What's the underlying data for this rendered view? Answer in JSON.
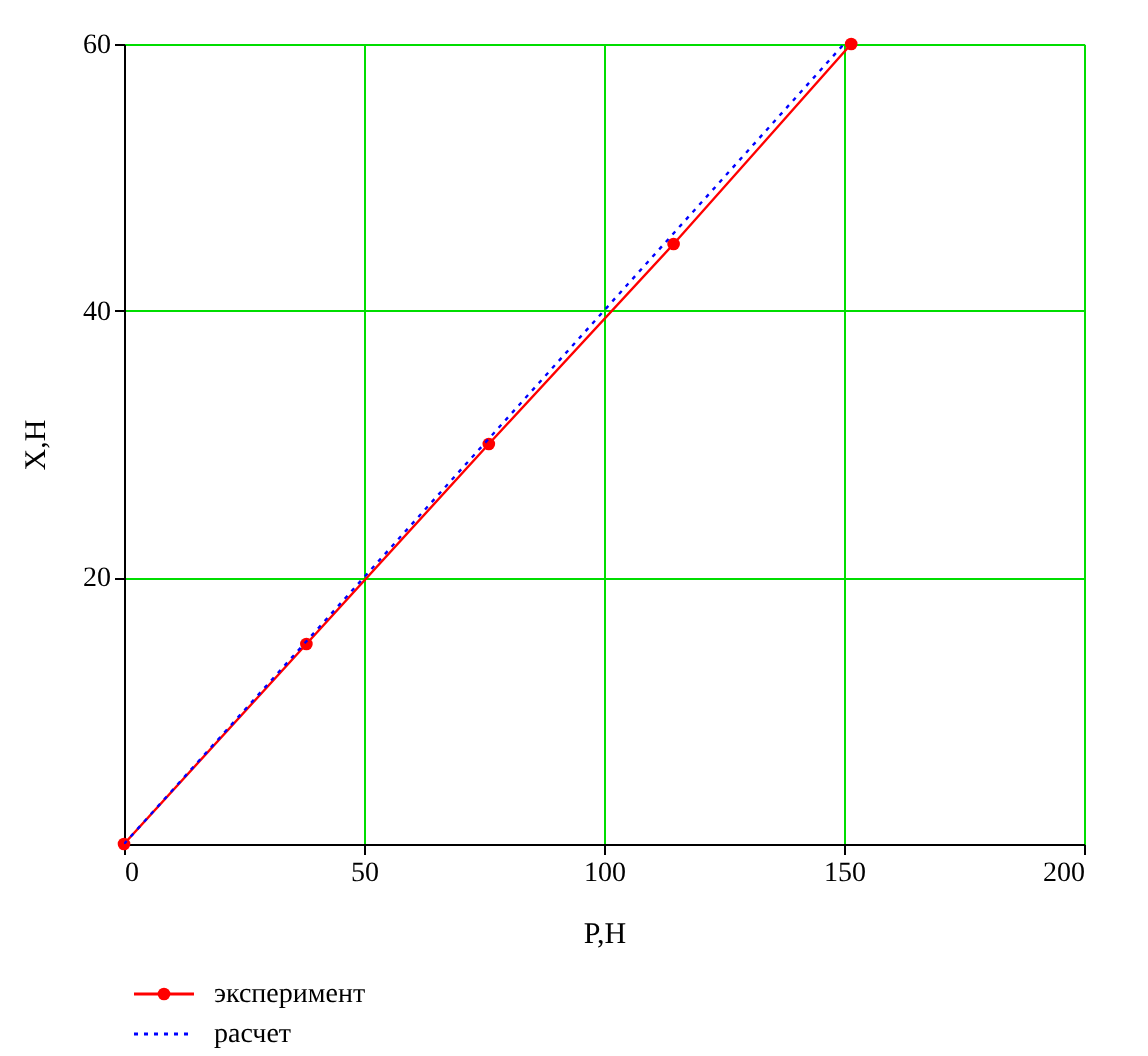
{
  "chart_data": {
    "type": "line",
    "xlabel": "P,H",
    "ylabel": "X,H",
    "series": [
      {
        "name": "эксперимент",
        "color": "#ff0000",
        "x": [
          0,
          38,
          76,
          114.5,
          151.5
        ],
        "values": [
          0,
          15,
          30,
          45,
          60
        ],
        "marker": "circle",
        "line_style": "solid"
      },
      {
        "name": "расчет",
        "color": "#0000ff",
        "x": [
          0,
          150
        ],
        "values": [
          0,
          60
        ],
        "marker": "none",
        "line_style": "dotted"
      }
    ],
    "xlim": [
      0,
      200
    ],
    "ylim": [
      0,
      60
    ],
    "xticks": [
      0,
      50,
      100,
      150,
      200
    ],
    "yticks": [
      20,
      40,
      60
    ],
    "grid": true,
    "legend": "bottom left"
  }
}
